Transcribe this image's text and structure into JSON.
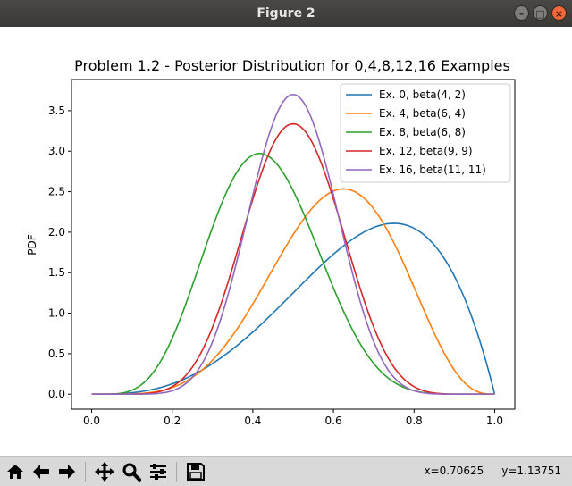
{
  "window": {
    "title": "Figure 2",
    "buttons": {
      "minimize": "–",
      "maximize": "□",
      "close": "×"
    }
  },
  "toolbar": {
    "tools": [
      "home-icon",
      "back-arrow-icon",
      "forward-arrow-icon",
      "pan-move-icon",
      "zoom-magnifier-icon",
      "configure-subplots-icon",
      "save-floppy-icon"
    ],
    "x_readout": "x=0.70625",
    "y_readout": "y=1.13751"
  },
  "chart_data": {
    "type": "line",
    "title": "Problem 1.2 - Posterior Distribution for 0,4,8,12,16 Examples",
    "xlabel": "",
    "ylabel": "PDF",
    "xlim": [
      -0.05,
      1.05
    ],
    "ylim": [
      -0.185,
      3.885
    ],
    "xticks": [
      "0.0",
      "0.2",
      "0.4",
      "0.6",
      "0.8",
      "1.0"
    ],
    "yticks": [
      "0.0",
      "0.5",
      "1.0",
      "1.5",
      "2.0",
      "2.5",
      "3.0",
      "3.5"
    ],
    "grid": false,
    "legend_position": "top-right",
    "series": [
      {
        "name": "Ex. 0, beta(4, 2)",
        "a": 4,
        "b": 2,
        "color": "#1f77b4"
      },
      {
        "name": "Ex. 4, beta(6, 4)",
        "a": 6,
        "b": 4,
        "color": "#ff7f0e"
      },
      {
        "name": "Ex. 8, beta(6, 8)",
        "a": 6,
        "b": 8,
        "color": "#2ca02c"
      },
      {
        "name": "Ex. 12, beta(9, 9)",
        "a": 9,
        "b": 9,
        "color": "#d62728"
      },
      {
        "name": "Ex. 16, beta(11, 11)",
        "a": 11,
        "b": 11,
        "color": "#9467bd"
      }
    ]
  }
}
